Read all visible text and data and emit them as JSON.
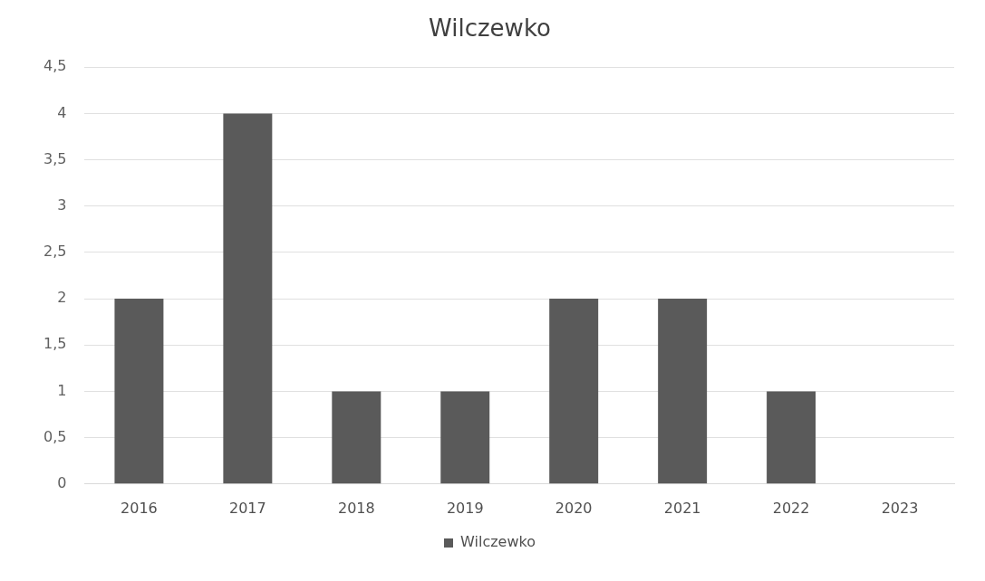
{
  "chart_data": {
    "type": "bar",
    "title": "Wilczewko",
    "categories": [
      "2016",
      "2017",
      "2018",
      "2019",
      "2020",
      "2021",
      "2022",
      "2023"
    ],
    "series": [
      {
        "name": "Wilczewko",
        "color": "#5a5a5a",
        "values": [
          2,
          4,
          1,
          1,
          2,
          2,
          1,
          0
        ]
      }
    ],
    "ylim": [
      0,
      4.5
    ],
    "yticks": [
      0,
      {
        "value": 0.5,
        "label": "0,5"
      },
      1,
      {
        "value": 1.5,
        "label": "1,5"
      },
      2,
      {
        "value": 2.5,
        "label": "2,5"
      },
      3,
      {
        "value": 3.5,
        "label": "3,5"
      },
      4,
      {
        "value": 4.5,
        "label": "4,5"
      }
    ],
    "grid": "y",
    "legend": "bottom"
  }
}
